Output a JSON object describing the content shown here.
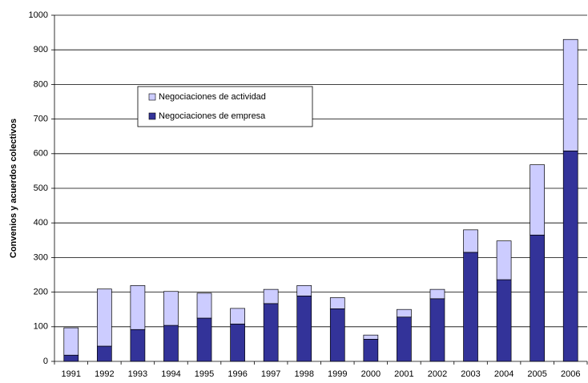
{
  "chart_data": {
    "type": "stacked_bar",
    "y_label": "Convenios y acuerdos colectivos",
    "categories": [
      "1991",
      "1992",
      "1993",
      "1994",
      "1995",
      "1996",
      "1997",
      "1998",
      "1999",
      "2000",
      "2001",
      "2002",
      "2003",
      "2004",
      "2005",
      "2006"
    ],
    "series": [
      {
        "name": "Negociaciones de empresa",
        "color": "#333399",
        "values": [
          18,
          44,
          92,
          104,
          125,
          108,
          167,
          189,
          152,
          64,
          128,
          181,
          315,
          236,
          365,
          608
        ]
      },
      {
        "name": "Negociaciones de actividad",
        "color": "#ccccff",
        "values": [
          79,
          165,
          127,
          98,
          72,
          45,
          41,
          30,
          32,
          12,
          22,
          27,
          65,
          112,
          203,
          322
        ]
      }
    ],
    "ylim": [
      0,
      1000
    ],
    "yticks": [
      0,
      100,
      200,
      300,
      400,
      500,
      600,
      700,
      800,
      900,
      1000
    ],
    "grid": true
  }
}
